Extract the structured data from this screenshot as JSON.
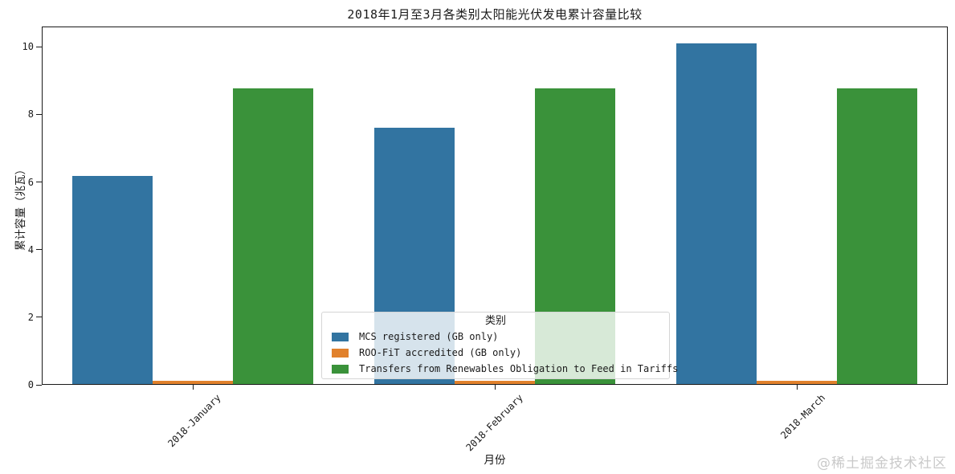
{
  "watermark": "@稀土掘金技术社区",
  "chart_data": {
    "type": "bar",
    "title": "2018年1月至3月各类别太阳能光伏发电累计容量比较",
    "xlabel": "月份",
    "ylabel": "累计容量（兆瓦）",
    "categories": [
      "2018-January",
      "2018-February",
      "2018-March"
    ],
    "series": [
      {
        "name": "MCS registered (GB only)",
        "color": "#3274a1",
        "values": [
          6.17,
          7.6,
          10.1
        ]
      },
      {
        "name": "ROO-FiT accredited (GB only)",
        "color": "#e1812c",
        "values": [
          0.13,
          0.13,
          0.13
        ]
      },
      {
        "name": "Transfers from Renewables Obligation to Feed in Tariffs",
        "color": "#3a923a",
        "values": [
          8.76,
          8.76,
          8.76
        ]
      }
    ],
    "ylim": [
      0,
      10.6
    ],
    "yticks": [
      0,
      2,
      4,
      6,
      8,
      10
    ],
    "legend_title": "类别",
    "legend_position": "lower center, inside plot",
    "grid": false,
    "x_tick_rotation_deg": 45
  }
}
